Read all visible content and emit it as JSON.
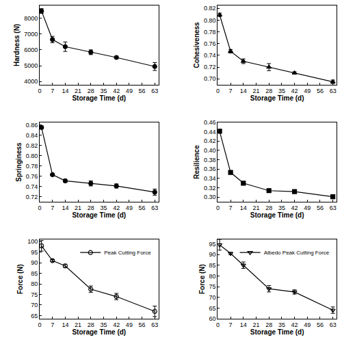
{
  "chart_data": [
    {
      "type": "line",
      "x_label": "Storage Time (d)",
      "y_label": "Hardness (N)",
      "x": [
        1,
        7,
        14,
        28,
        42,
        63
      ],
      "xlim": [
        0,
        65
      ],
      "xticks": [
        0,
        7,
        14,
        21,
        28,
        35,
        42,
        49,
        56,
        63
      ],
      "ylim": [
        3800,
        8800
      ],
      "yticks": [
        4000,
        5000,
        6000,
        7000,
        8000
      ],
      "grid": false,
      "series": [
        {
          "color": "#000000",
          "marker": "circle",
          "values": [
            8450,
            6650,
            6200,
            5850,
            5520,
            4950
          ],
          "errors": [
            150,
            200,
            300,
            150,
            70,
            250
          ]
        }
      ]
    },
    {
      "type": "line",
      "x_label": "Storage Time (d)",
      "y_label": "Cohesiveness",
      "x": [
        1,
        7,
        14,
        28,
        42,
        63
      ],
      "xlim": [
        0,
        65
      ],
      "xticks": [
        0,
        7,
        14,
        21,
        28,
        35,
        42,
        49,
        56,
        63
      ],
      "ylim": [
        0.69,
        0.825
      ],
      "yticks": [
        {
          "value": 0.7,
          "label": "0.70"
        },
        0.72,
        0.74,
        0.76,
        0.78,
        {
          "value": 0.8,
          "label": "0.80"
        },
        0.82
      ],
      "grid": false,
      "series": [
        {
          "color": "#000000",
          "marker": "triangle-up",
          "values": [
            0.809,
            0.747,
            0.73,
            0.72,
            0.71,
            0.695
          ],
          "errors": [
            0.003,
            0.003,
            0.004,
            0.006,
            0.002,
            0.003
          ]
        }
      ]
    },
    {
      "type": "line",
      "x_label": "Storage Time (d)",
      "y_label": "Springiness",
      "x": [
        1,
        7,
        14,
        28,
        42,
        63
      ],
      "xlim": [
        0,
        65
      ],
      "xticks": [
        0,
        7,
        14,
        21,
        28,
        35,
        42,
        49,
        56,
        63
      ],
      "ylim": [
        0.71,
        0.865
      ],
      "yticks": [
        0.72,
        0.74,
        0.76,
        0.78,
        {
          "value": 0.8,
          "label": "0.80"
        },
        0.82,
        0.84,
        0.86
      ],
      "grid": false,
      "series": [
        {
          "color": "#000000",
          "marker": "circle",
          "values": [
            0.855,
            0.763,
            0.751,
            0.746,
            0.741,
            0.729
          ],
          "errors": [
            0.003,
            0.002,
            0.003,
            0.005,
            0.004,
            0.006
          ]
        }
      ]
    },
    {
      "type": "line",
      "x_label": "Storage Time (d)",
      "y_label": "Resilience",
      "x": [
        1,
        7,
        14,
        28,
        42,
        63
      ],
      "xlim": [
        0,
        65
      ],
      "xticks": [
        0,
        7,
        14,
        21,
        28,
        35,
        42,
        49,
        56,
        63
      ],
      "ylim": [
        0.29,
        0.46
      ],
      "yticks": [
        {
          "value": 0.3,
          "label": "0.30"
        },
        0.32,
        0.34,
        0.36,
        0.38,
        {
          "value": 0.4,
          "label": "0.40"
        },
        0.42,
        0.44,
        0.46
      ],
      "grid": false,
      "series": [
        {
          "color": "#000000",
          "marker": "square",
          "values": [
            0.441,
            0.353,
            0.33,
            0.314,
            0.312,
            0.301
          ],
          "errors": [
            0.003,
            0.002,
            0.003,
            0.004,
            0.003,
            0.004
          ]
        }
      ]
    },
    {
      "type": "line",
      "x_label": "Storage Time (d)",
      "y_label": "Force (N)",
      "x": [
        1,
        7,
        14,
        28,
        42,
        63
      ],
      "xlim": [
        0,
        65
      ],
      "xticks": [
        0,
        7,
        14,
        21,
        28,
        35,
        42,
        49,
        56,
        63
      ],
      "ylim": [
        63.5,
        101
      ],
      "yticks": [
        65,
        70,
        75,
        80,
        85,
        90,
        95,
        100
      ],
      "grid": false,
      "legend": "top right",
      "series": [
        {
          "name": "Peak Cutting Force",
          "color": "#000000",
          "marker": "circle-open",
          "values": [
            98,
            91,
            88.5,
            77.5,
            74,
            67
          ],
          "errors": [
            2.5,
            0.5,
            0.8,
            1.5,
            1.5,
            2.5
          ]
        }
      ]
    },
    {
      "type": "line",
      "x_label": "Storage Time (d)",
      "y_label": "Force (N)",
      "x": [
        1,
        7,
        14,
        28,
        42,
        63
      ],
      "xlim": [
        0,
        65
      ],
      "xticks": [
        0,
        7,
        14,
        21,
        28,
        35,
        42,
        49,
        56,
        63
      ],
      "ylim": [
        60,
        97
      ],
      "yticks": [
        60,
        65,
        70,
        75,
        80,
        85,
        90,
        95
      ],
      "grid": false,
      "legend": "top right",
      "series": [
        {
          "name": "Albedo Peak Cutting Force",
          "color": "#000000",
          "marker": "triangle-down-open",
          "values": [
            94.5,
            90.5,
            85,
            74,
            72.5,
            64
          ],
          "errors": [
            2.5,
            0.5,
            1.5,
            1.5,
            1,
            1.5
          ]
        }
      ]
    }
  ]
}
